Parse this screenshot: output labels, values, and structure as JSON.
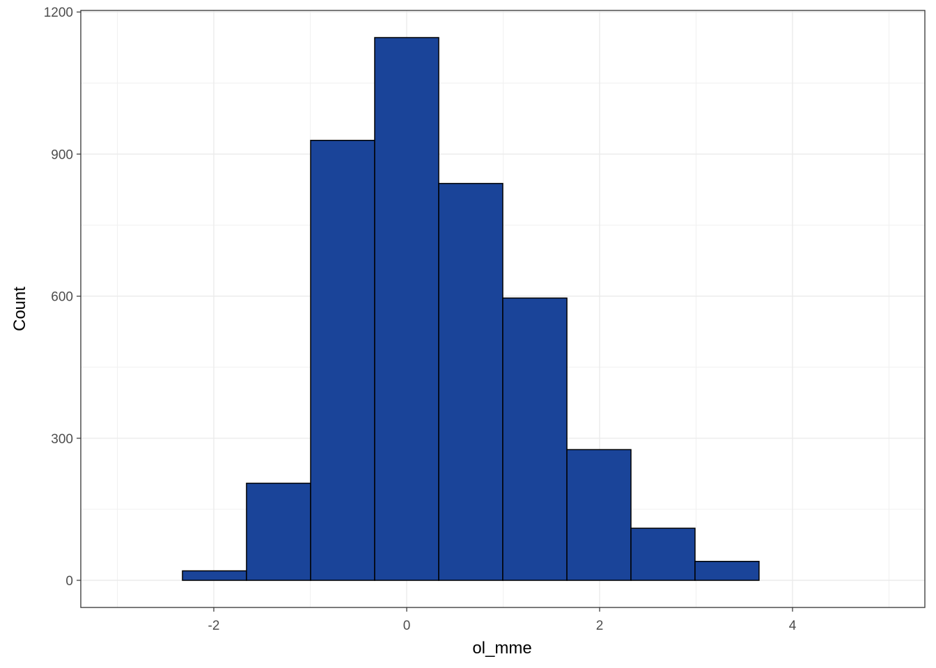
{
  "chart_data": {
    "type": "histogram",
    "x_label": "ol_mme",
    "y_label": "Count",
    "bins": [
      -2.989,
      -2.325,
      -1.661,
      -0.996,
      -0.332,
      0.332,
      0.996,
      1.661,
      2.325,
      2.989,
      3.653,
      4.318,
      4.982
    ],
    "values": [
      0,
      20,
      205,
      929,
      1146,
      838,
      596,
      276,
      110,
      40,
      0,
      0
    ],
    "color": "#1a4499",
    "xlim": [
      -3.379,
      5.372
    ],
    "xticks": [
      -2,
      0,
      2,
      4
    ],
    "ylim": [
      -57.3,
      1203.3
    ],
    "yticks": [
      0,
      300,
      600,
      900,
      1200
    ],
    "grid": true
  }
}
